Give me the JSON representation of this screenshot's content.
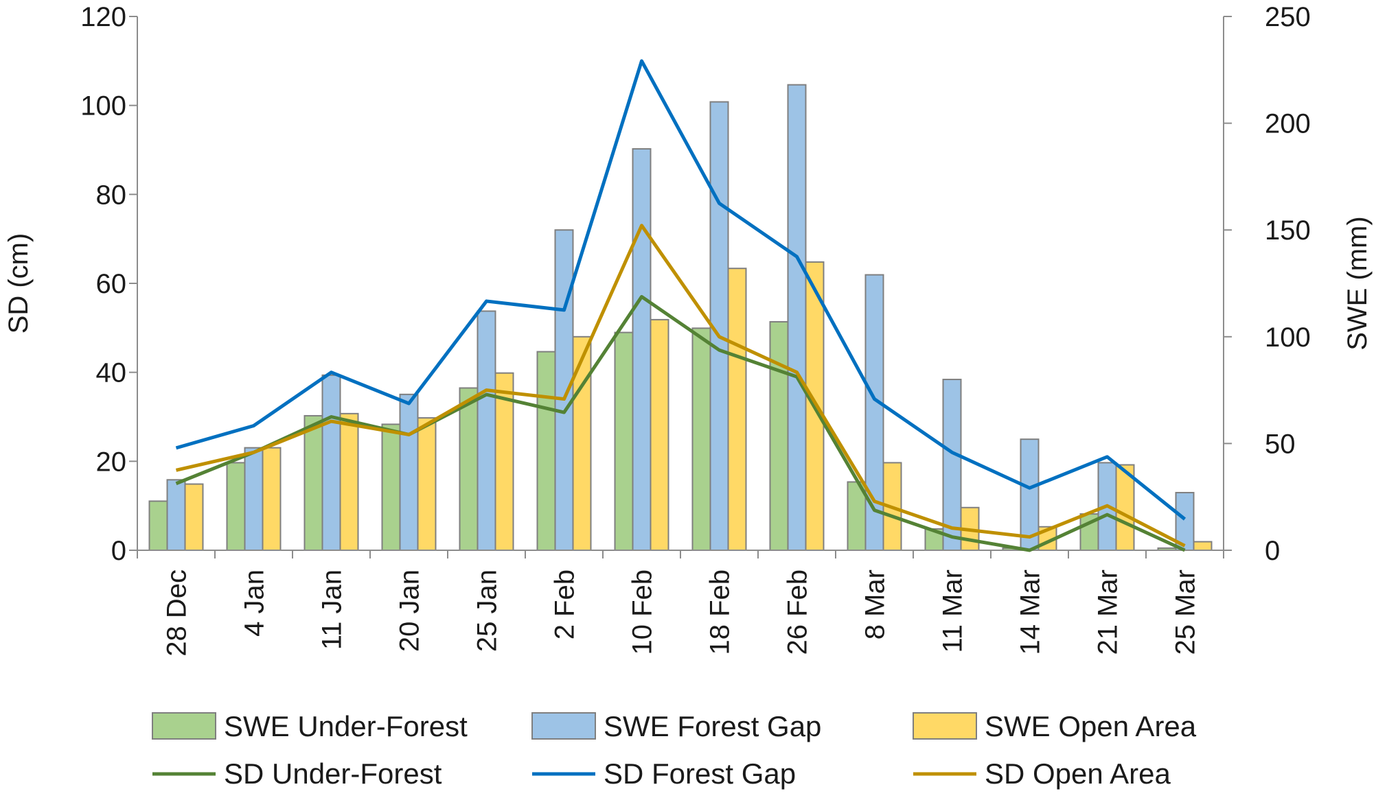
{
  "chart_data": {
    "type": "bar",
    "categories": [
      "28 Dec",
      "4 Jan",
      "11 Jan",
      "20 Jan",
      "25 Jan",
      "2 Feb",
      "10 Feb",
      "18 Feb",
      "26 Feb",
      "8 Mar",
      "11 Mar",
      "14 Mar",
      "21 Mar",
      "25 Mar"
    ],
    "ylabel": "SD (cm)",
    "y2label": "SWE (mm)",
    "ylim": [
      0,
      120
    ],
    "y2lim": [
      0,
      250
    ],
    "yticks": [
      "0",
      "20",
      "40",
      "60",
      "80",
      "100",
      "120"
    ],
    "y2ticks": [
      "0",
      "50",
      "100",
      "150",
      "200",
      "250"
    ],
    "grid": false,
    "legend_position": "bottom",
    "bar_series": [
      {
        "name": "SWE Under-Forest",
        "axis": "right",
        "color": "#a9d18e",
        "values": [
          23,
          41,
          63,
          59,
          76,
          93,
          102,
          104,
          107,
          32,
          10,
          1,
          17,
          1
        ]
      },
      {
        "name": "SWE Forest Gap",
        "axis": "right",
        "color": "#9dc3e6",
        "values": [
          33,
          48,
          82,
          73,
          112,
          150,
          188,
          210,
          218,
          129,
          80,
          52,
          41,
          27
        ]
      },
      {
        "name": "SWE Open Area",
        "axis": "right",
        "color": "#ffd966",
        "values": [
          31,
          48,
          64,
          62,
          83,
          100,
          108,
          132,
          135,
          41,
          20,
          11,
          40,
          4
        ]
      }
    ],
    "line_series": [
      {
        "name": "SD Under-Forest",
        "axis": "left",
        "color": "#548235",
        "values": [
          15,
          22,
          30,
          26,
          35,
          31,
          57,
          45,
          39,
          9,
          3,
          0,
          8,
          0
        ]
      },
      {
        "name": "SD Forest Gap",
        "axis": "left",
        "color": "#0070c0",
        "values": [
          23,
          28,
          40,
          33,
          56,
          54,
          110,
          78,
          66,
          34,
          22,
          14,
          21,
          7
        ]
      },
      {
        "name": "SD Open Area",
        "axis": "left",
        "color": "#bf9000",
        "values": [
          18,
          22,
          29,
          26,
          36,
          34,
          73,
          48,
          40,
          11,
          5,
          3,
          10,
          1
        ]
      }
    ]
  }
}
